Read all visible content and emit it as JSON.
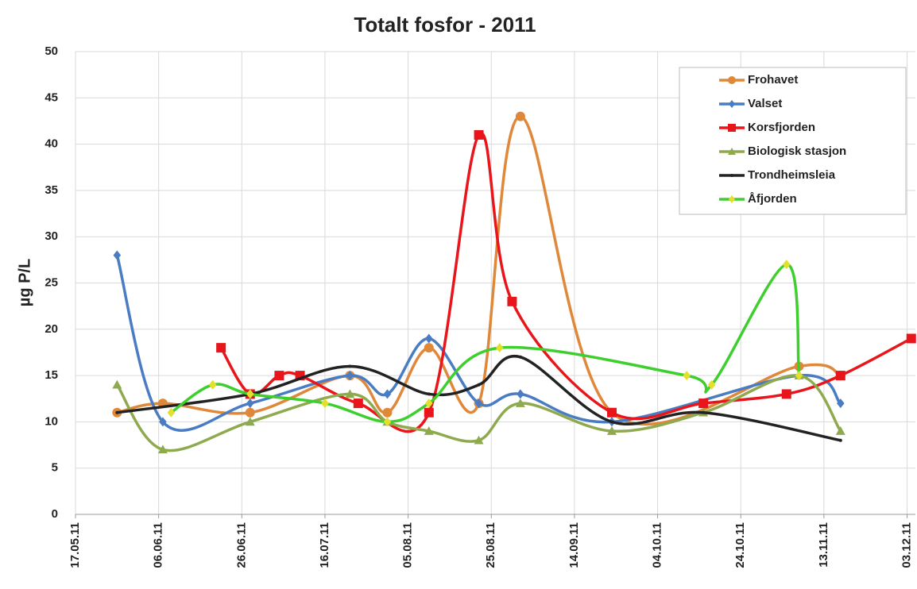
{
  "chart_data": {
    "type": "line",
    "title": "Totalt fosfor - 2011",
    "ylabel": "µg P/L",
    "xlim": [
      "2011-05-17",
      "2011-12-05"
    ],
    "xticks": [
      {
        "value": "2011-05-17",
        "label": "17.05.11"
      },
      {
        "value": "2011-06-06",
        "label": "06.06.11"
      },
      {
        "value": "2011-06-26",
        "label": "26.06.11"
      },
      {
        "value": "2011-07-16",
        "label": "16.07.11"
      },
      {
        "value": "2011-08-05",
        "label": "05.08.11"
      },
      {
        "value": "2011-08-25",
        "label": "25.08.11"
      },
      {
        "value": "2011-09-14",
        "label": "14.09.11"
      },
      {
        "value": "2011-10-04",
        "label": "04.10.11"
      },
      {
        "value": "2011-10-24",
        "label": "24.10.11"
      },
      {
        "value": "2011-11-13",
        "label": "13.11.11"
      },
      {
        "value": "2011-12-03",
        "label": "03.12.11"
      }
    ],
    "ylim": [
      0,
      50
    ],
    "yticks": [
      0,
      5,
      10,
      15,
      20,
      25,
      30,
      35,
      40,
      45,
      50
    ],
    "grid": true,
    "legend": "upper right",
    "series": [
      {
        "name": "Frohavet",
        "color": "#e0883a",
        "marker": "circle",
        "marker_color": "#e0883a",
        "x": [
          "2011-05-27",
          "2011-06-07",
          "2011-06-28",
          "2011-07-22",
          "2011-07-31",
          "2011-08-10",
          "2011-08-22",
          "2011-09-01",
          "2011-09-23",
          "2011-11-07",
          "2011-11-17"
        ],
        "values": [
          11,
          12,
          11,
          15,
          11,
          18,
          12,
          43,
          11,
          16,
          15
        ]
      },
      {
        "name": "Valset",
        "color": "#4a7cc4",
        "marker": "diamond",
        "marker_color": "#4a7cc4",
        "x": [
          "2011-05-27",
          "2011-06-07",
          "2011-06-28",
          "2011-07-22",
          "2011-07-31",
          "2011-08-10",
          "2011-08-22",
          "2011-09-01",
          "2011-09-23",
          "2011-11-07",
          "2011-11-17"
        ],
        "values": [
          28,
          10,
          12,
          15,
          13,
          19,
          12,
          13,
          10,
          15,
          12
        ]
      },
      {
        "name": "Korsfjorden",
        "color": "#e8161b",
        "marker": "square",
        "marker_color": "#e8161b",
        "x": [
          "2011-06-21",
          "2011-06-28",
          "2011-07-05",
          "2011-07-10",
          "2011-07-24",
          "2011-08-10",
          "2011-08-22",
          "2011-08-30",
          "2011-09-23",
          "2011-10-15",
          "2011-11-04",
          "2011-11-17",
          "2011-12-04"
        ],
        "values": [
          18,
          13,
          15,
          15,
          12,
          11,
          41,
          23,
          11,
          12,
          13,
          15,
          19
        ]
      },
      {
        "name": "Biologisk stasjon",
        "color": "#8faa4e",
        "marker": "triangle",
        "marker_color": "#8faa4e",
        "x": [
          "2011-05-27",
          "2011-06-07",
          "2011-06-28",
          "2011-07-22",
          "2011-07-31",
          "2011-08-10",
          "2011-08-22",
          "2011-09-01",
          "2011-09-23",
          "2011-10-15",
          "2011-11-07",
          "2011-11-17"
        ],
        "values": [
          14,
          7,
          10,
          13,
          10,
          9,
          8,
          12,
          9,
          11,
          15,
          9
        ]
      },
      {
        "name": "Trondheimsleia",
        "color": "#222222",
        "marker": "none",
        "marker_color": "#222222",
        "x": [
          "2011-05-27",
          "2011-06-28",
          "2011-07-22",
          "2011-08-10",
          "2011-08-22",
          "2011-09-01",
          "2011-09-23",
          "2011-10-15",
          "2011-11-17"
        ],
        "values": [
          11,
          13,
          16,
          13,
          14,
          17,
          10,
          11,
          8
        ]
      },
      {
        "name": "Åfjorden",
        "color": "#3ecf2e",
        "marker": "diamond",
        "marker_color": "#e2e02a",
        "x": [
          "2011-06-09",
          "2011-06-19",
          "2011-06-28",
          "2011-07-16",
          "2011-07-31",
          "2011-08-10",
          "2011-08-27",
          "2011-10-11",
          "2011-10-17",
          "2011-11-04",
          "2011-11-07"
        ],
        "values": [
          11,
          14,
          13,
          12,
          10,
          12,
          18,
          15,
          14,
          27,
          15
        ]
      }
    ]
  }
}
